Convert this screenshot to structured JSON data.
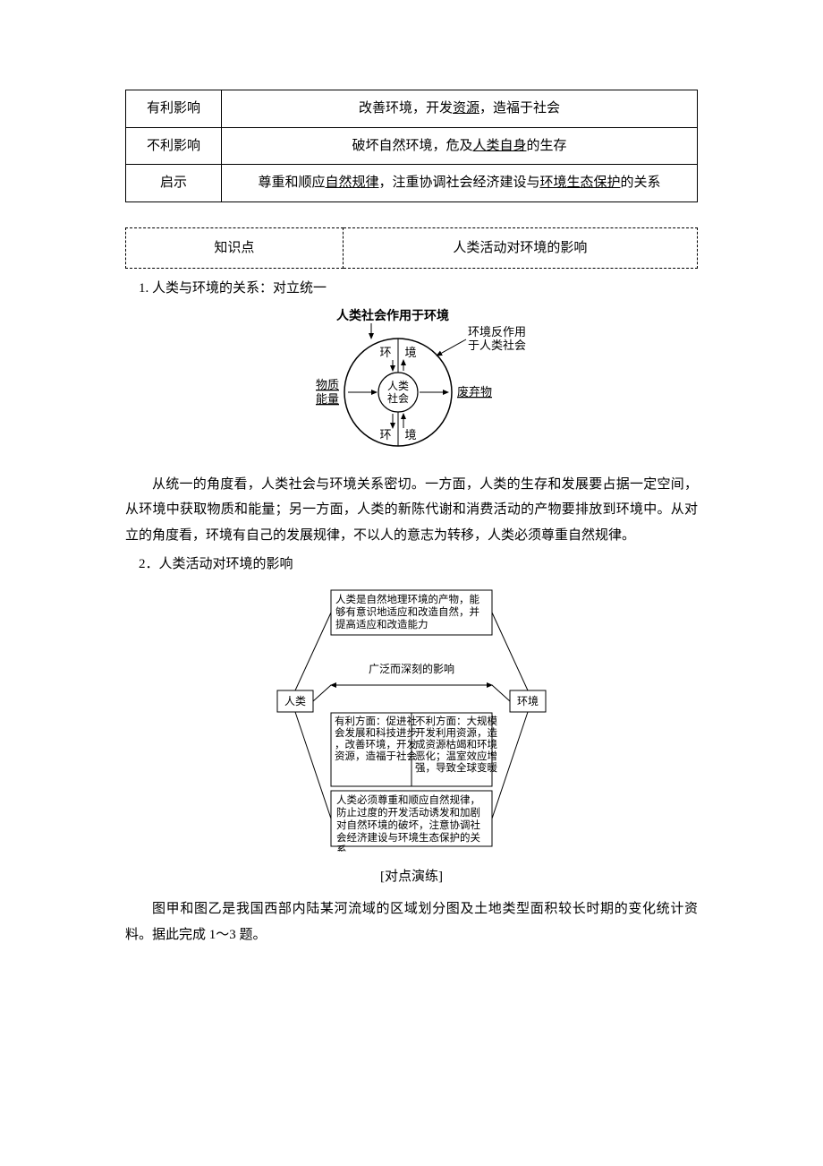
{
  "impact_table": {
    "rows": [
      {
        "label": "有利影响",
        "text_parts": [
          "改善环境，开发",
          "资源",
          "，造福于社会"
        ],
        "under_idx": 1
      },
      {
        "label": "不利影响",
        "text_parts": [
          "破坏自然环境，危及",
          "人类自身",
          "的生存"
        ],
        "under_idx": 1
      },
      {
        "label": "启示",
        "text_parts": [
          "尊重和顺应",
          "自然规律",
          "，注重协调社会经济建设与",
          "环境生态保护",
          "的关系"
        ],
        "under_idx": [
          1,
          3
        ]
      }
    ]
  },
  "knowledge_table": {
    "left": "知识点",
    "right": "人类活动对环境的影响"
  },
  "section1_heading": "1. 人类与环境的关系：对立统一",
  "diagram1": {
    "title_top": "人类社会作用于环境",
    "side_note_l1": "环境反作用",
    "side_note_l2": "于人类社会",
    "env_top": "环",
    "jing_top": "境",
    "env_bottom": "环",
    "jing_bottom": "境",
    "left_l1": "物质",
    "left_l2": "能量",
    "center_l1": "人类",
    "center_l2": "社会",
    "right": "废弃物",
    "outer_radius": 60,
    "inner_radius": 22,
    "stroke": "#000000",
    "fontsize": 13
  },
  "para1": "从统一的角度看，人类社会与环境关系密切。一方面，人类的生存和发展要占据一定空间，从环境中获取物质和能量；另一方面，人类的新陈代谢和消费活动的产物要排放到环境中。从对立的角度看，环境有自己的发展规律，不以人的意志为转移，人类必须尊重自然规律。",
  "section2_heading": "2．人类活动对环境的影响",
  "diagram2": {
    "human": "人类",
    "env": "环境",
    "top_box": "人类是自然地理环境的产物，能够有意识地适应和改造自然，并提高适应和改造能力",
    "mid_label": "广泛而深刻的影响",
    "left_box": "有利方面：促进社会发展和科技进步，改善环境，开发资源，造福于社会",
    "right_box": "不利方面：大规模开发利用资源，造成资源枯竭和环境恶化；温室效应增强，导致全球变暖",
    "bottom_box": "人类必须尊重和顺应自然规律，防止过度的开发活动诱发和加剧对自然环境的破坏，注意协调社会经济建设与环境生态保护的关系",
    "stroke": "#000000",
    "fontsize": 11.5,
    "label_fontsize": 12
  },
  "practice_label": "[对点演练]",
  "para2": "图甲和图乙是我国西部内陆某河流域的区域划分图及土地类型面积较长时期的变化统计资料。据此完成 1～3 题。"
}
